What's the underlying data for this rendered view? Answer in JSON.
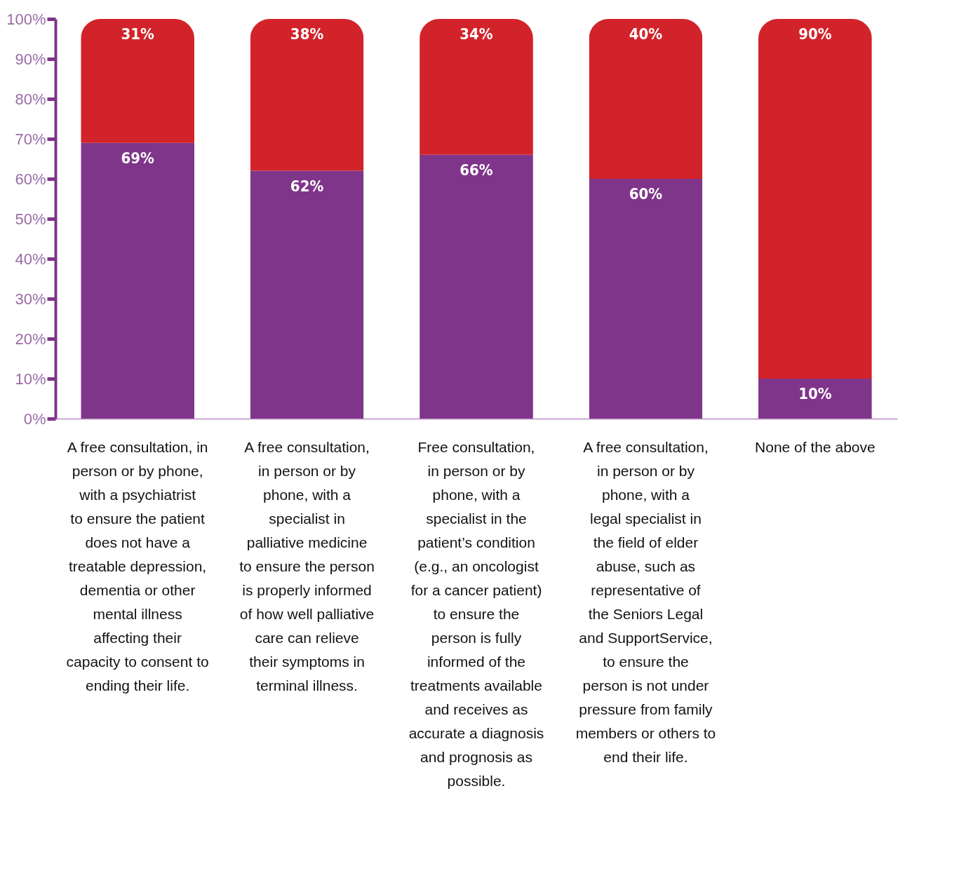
{
  "chart_data": {
    "type": "bar",
    "stacked": true,
    "grid": false,
    "legend": false,
    "categories": [
      "A free consultation, in\nperson or by phone,\nwith a psychiatrist\nto ensure the patient\ndoes not have a\ntreatable depression,\ndementia or other\nmental illness\naffecting their\ncapacity to consent to\nending their life.",
      "A free consultation,\nin person or by\nphone, with a\nspecialist in\npalliative medicine\nto ensure the person\nis properly informed\nof how well palliative\ncare can relieve\ntheir symptoms in\nterminal illness.",
      "Free consultation,\nin person or by\nphone, with a\nspecialist in the\npatient’s condition\n(e.g., an oncologist\nfor a cancer patient)\nto ensure the\nperson is fully\ninformed of the\ntreatments available\nand receives as\naccurate a diagnosis\nand prognosis as\npossible.",
      "A free consultation,\nin person or by\nphone, with a\nlegal specialist in\nthe field of elder\nabuse, such as\nrepresentative of\nthe Seniors Legal\nand SupportService,\nto ensure the\nperson is not under\npressure from family\nmembers or others to\nend their life.",
      "None of the above"
    ],
    "series": [
      {
        "color": "#7f358a",
        "values": [
          69,
          62,
          66,
          60,
          10
        ],
        "value_labels": [
          "69%",
          "62%",
          "66%",
          "60%",
          "10%"
        ]
      },
      {
        "color": "#d2232a",
        "values": [
          31,
          38,
          34,
          40,
          90
        ],
        "value_labels": [
          "31%",
          "38%",
          "34%",
          "40%",
          "90%"
        ]
      }
    ],
    "ylim": [
      0,
      100
    ],
    "yticks": [
      {
        "value": 0,
        "label": "0%"
      },
      {
        "value": 10,
        "label": "10%"
      },
      {
        "value": 20,
        "label": "20%"
      },
      {
        "value": 30,
        "label": "30%"
      },
      {
        "value": 40,
        "label": "40%"
      },
      {
        "value": 50,
        "label": "50%"
      },
      {
        "value": 60,
        "label": "60%"
      },
      {
        "value": 70,
        "label": "70%"
      },
      {
        "value": 80,
        "label": "80%"
      },
      {
        "value": 90,
        "label": "90%"
      },
      {
        "value": 100,
        "label": "100%"
      }
    ]
  }
}
